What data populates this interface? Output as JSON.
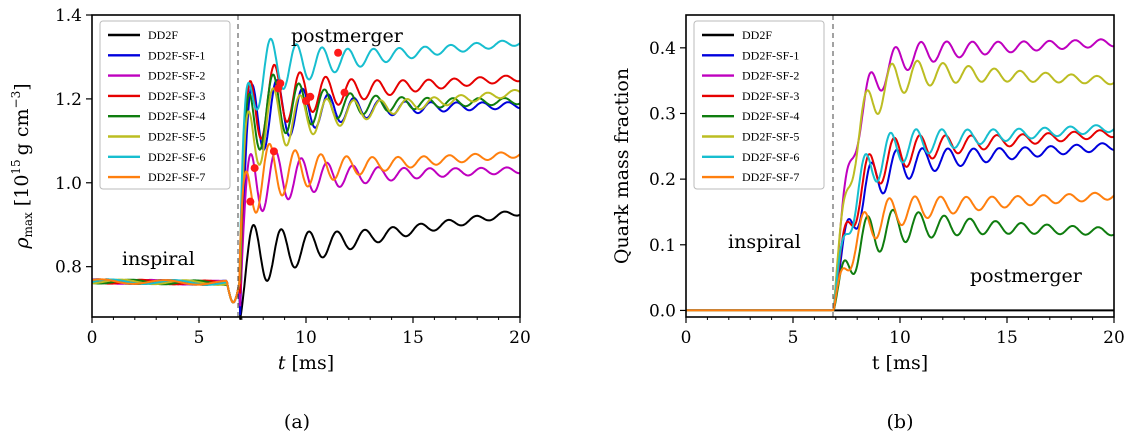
{
  "figure": {
    "panel_a": {
      "caption": "(a)",
      "ylabel_main": "ρ",
      "ylabel_sub": "max",
      "ylabel_units": "[10",
      "ylabel_exp": "15",
      "ylabel_units2": "g cm",
      "ylabel_exp2": "−3",
      "ylabel_close": "]",
      "xlabel_var": "t",
      "xlabel_unit": "[ms]",
      "xticks": [
        "0",
        "5",
        "10",
        "15",
        "20"
      ],
      "yticks": [
        "0.8",
        "1.0",
        "1.2",
        "1.4"
      ],
      "annot_inspiral": "inspiral",
      "annot_postmerger": "postmerger"
    },
    "panel_b": {
      "caption": "(b)",
      "ylabel": "Quark mass fraction",
      "xlabel": "t [ms]",
      "xticks": [
        "0",
        "5",
        "10",
        "15",
        "20"
      ],
      "yticks": [
        "0.0",
        "0.1",
        "0.2",
        "0.3",
        "0.4"
      ],
      "annot_inspiral": "inspiral",
      "annot_postmerger": "postmerger"
    }
  },
  "chart_data": [
    {
      "type": "line",
      "panel": "a",
      "xlabel": "t [ms]",
      "ylabel": "ρmax [10^15 g cm^-3]",
      "xlim": [
        0,
        20
      ],
      "ylim": [
        0.68,
        1.4
      ],
      "merger_time": 6.9,
      "legend": "top-left",
      "series": [
        {
          "name": "DD2F",
          "color": "#000000",
          "pre": 0.765,
          "post_from": 0.82,
          "post_to": 0.93,
          "osc_amp": 0.09,
          "osc_period": 1.3
        },
        {
          "name": "DD2F-SF-1",
          "color": "#0000dd",
          "pre": 0.765,
          "post_from": 1.17,
          "post_to": 1.185,
          "osc_amp": 0.12,
          "osc_period": 1.2
        },
        {
          "name": "DD2F-SF-2",
          "color": "#bf00bf",
          "pre": 0.765,
          "post_from": 1.01,
          "post_to": 1.03,
          "osc_amp": 0.1,
          "osc_period": 1.2
        },
        {
          "name": "DD2F-SF-3",
          "color": "#e60000",
          "pre": 0.765,
          "post_from": 1.2,
          "post_to": 1.25,
          "osc_amp": 0.12,
          "osc_period": 1.2
        },
        {
          "name": "DD2F-SF-4",
          "color": "#0f7d0f",
          "pre": 0.765,
          "post_from": 1.18,
          "post_to": 1.195,
          "osc_amp": 0.12,
          "osc_period": 1.2
        },
        {
          "name": "DD2F-SF-5",
          "color": "#bcbd22",
          "pre": 0.765,
          "post_from": 1.14,
          "post_to": 1.215,
          "osc_amp": 0.12,
          "osc_period": 1.25
        },
        {
          "name": "DD2F-SF-6",
          "color": "#17becf",
          "pre": 0.765,
          "post_from": 1.27,
          "post_to": 1.335,
          "osc_amp": 0.1,
          "osc_period": 1.2
        },
        {
          "name": "DD2F-SF-7",
          "color": "#ff7f0e",
          "pre": 0.765,
          "post_from": 1.02,
          "post_to": 1.068,
          "osc_amp": 0.1,
          "osc_period": 1.2
        }
      ],
      "markers": [
        [
          7.4,
          0.955
        ],
        [
          7.6,
          1.035
        ],
        [
          8.5,
          1.075
        ],
        [
          8.7,
          1.225
        ],
        [
          8.8,
          1.237
        ],
        [
          10.0,
          1.195
        ],
        [
          10.2,
          1.205
        ],
        [
          11.8,
          1.215
        ],
        [
          11.5,
          1.31
        ]
      ]
    },
    {
      "type": "line",
      "panel": "b",
      "xlabel": "t [ms]",
      "ylabel": "Quark mass fraction",
      "xlim": [
        0,
        20
      ],
      "ylim": [
        -0.01,
        0.45
      ],
      "merger_time": 6.9,
      "legend": "top-left",
      "series": [
        {
          "name": "DD2F",
          "color": "#000000",
          "post_from": 0.0,
          "post_to": 0.0,
          "osc_amp": 0.0
        },
        {
          "name": "DD2F-SF-1",
          "color": "#0000dd",
          "post_from": 0.22,
          "post_to": 0.25,
          "osc_amp": 0.06
        },
        {
          "name": "DD2F-SF-2",
          "color": "#bf00bf",
          "post_from": 0.39,
          "post_to": 0.408,
          "osc_amp": 0.05
        },
        {
          "name": "DD2F-SF-3",
          "color": "#e60000",
          "post_from": 0.24,
          "post_to": 0.27,
          "osc_amp": 0.06
        },
        {
          "name": "DD2F-SF-4",
          "color": "#0f7d0f",
          "post_from": 0.135,
          "post_to": 0.12,
          "osc_amp": 0.06
        },
        {
          "name": "DD2F-SF-5",
          "color": "#bcbd22",
          "post_from": 0.37,
          "post_to": 0.35,
          "osc_amp": 0.06
        },
        {
          "name": "DD2F-SF-6",
          "color": "#17becf",
          "post_from": 0.25,
          "post_to": 0.278,
          "osc_amp": 0.06
        },
        {
          "name": "DD2F-SF-7",
          "color": "#ff7f0e",
          "post_from": 0.15,
          "post_to": 0.175,
          "osc_amp": 0.05
        }
      ]
    }
  ]
}
